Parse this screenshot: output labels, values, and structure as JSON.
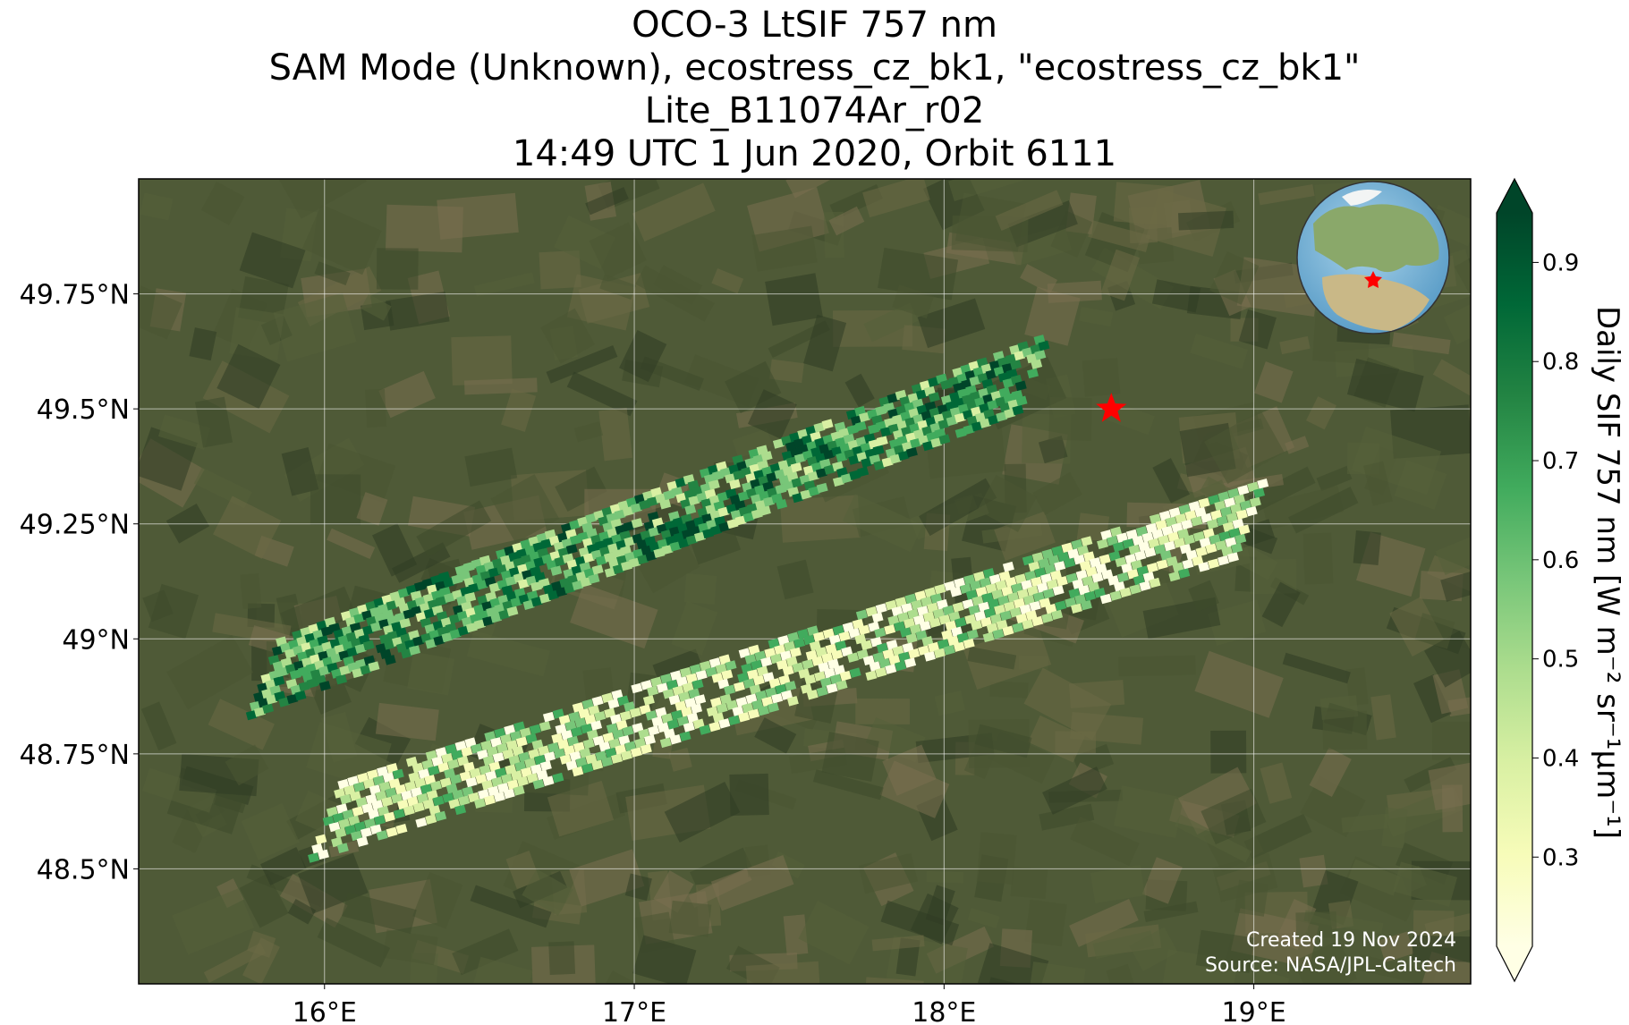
{
  "title_lines": [
    "OCO-3 LtSIF 757 nm",
    "SAM Mode (Unknown), ecostress_cz_bk1, \"ecostress_cz_bk1\"",
    "Lite_B11074Ar_r02",
    "14:49 UTC 1 Jun 2020, Orbit 6111"
  ],
  "map": {
    "lon_range": [
      15.4,
      19.7
    ],
    "lat_range": [
      48.25,
      50.0
    ],
    "x_ticks": [
      {
        "value": 16,
        "label": "16°E"
      },
      {
        "value": 17,
        "label": "17°E"
      },
      {
        "value": 18,
        "label": "18°E"
      },
      {
        "value": 19,
        "label": "19°E"
      }
    ],
    "y_ticks": [
      {
        "value": 49.75,
        "label": "49.75°N"
      },
      {
        "value": 49.5,
        "label": "49.5°N"
      },
      {
        "value": 49.25,
        "label": "49.25°N"
      },
      {
        "value": 49.0,
        "label": "49°N"
      },
      {
        "value": 48.75,
        "label": "48.75°N"
      },
      {
        "value": 48.5,
        "label": "48.5°N"
      }
    ],
    "target_marker": {
      "lon": 18.54,
      "lat": 49.5,
      "color": "#ff0000",
      "icon": "star-icon"
    },
    "basemap_colors": [
      "#3e4a2c",
      "#55603a",
      "#6b6a45",
      "#4a5533",
      "#7a7050",
      "#2f3d24"
    ],
    "grid": true,
    "credit_lines": [
      "Created 19 Nov 2024",
      "Source: NASA/JPL-Caltech"
    ]
  },
  "inset_globe": {
    "marker_icon": "star-icon",
    "marker_color": "#ff0000"
  },
  "colorbar": {
    "label": "Daily SIF 757 nm [W m⁻² sr⁻¹µm⁻¹]",
    "range": [
      0.21,
      0.95
    ],
    "ticks": [
      "0.3",
      "0.4",
      "0.5",
      "0.6",
      "0.7",
      "0.8",
      "0.9"
    ],
    "extend": "both",
    "colormap": "YlGn",
    "colors": [
      "#ffffe5",
      "#f7fcb9",
      "#d9f0a3",
      "#addd8e",
      "#78c679",
      "#41ab5d",
      "#238443",
      "#006837",
      "#004529"
    ]
  },
  "chart_data": {
    "type": "heatmap",
    "description_series": "SIF footprints along two SAM swaths",
    "swaths": [
      {
        "lon_start": 15.8,
        "lat_start": 48.93,
        "lon_end": 18.3,
        "lat_end": 49.6,
        "mean_value": 0.68
      },
      {
        "lon_start": 16.0,
        "lat_start": 48.62,
        "lon_end": 19.0,
        "lat_end": 49.28,
        "mean_value": 0.42
      }
    ],
    "value_range": [
      0.21,
      0.95
    ]
  }
}
